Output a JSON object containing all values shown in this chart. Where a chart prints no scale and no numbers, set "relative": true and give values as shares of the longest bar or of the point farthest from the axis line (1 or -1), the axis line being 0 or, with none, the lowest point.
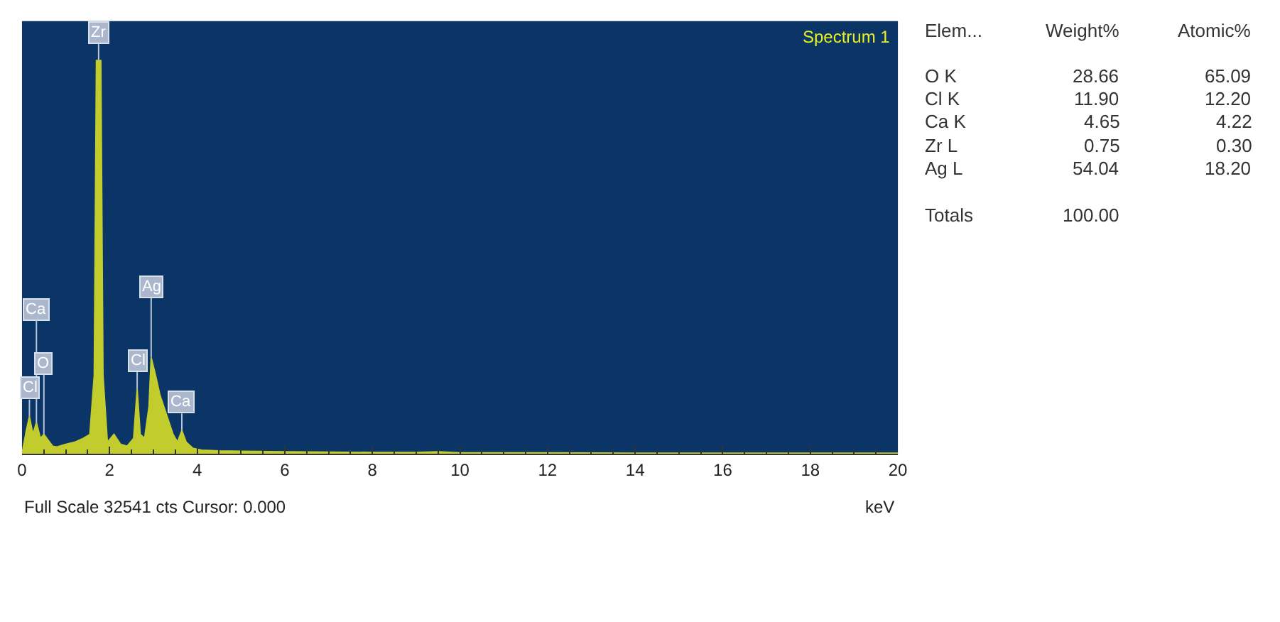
{
  "chart_data": [
    {
      "type": "area",
      "relative": true,
      "xlabel": "keV",
      "xlim": [
        0,
        20
      ],
      "xticks": [
        0,
        2,
        4,
        6,
        8,
        10,
        12,
        14,
        16,
        18,
        20
      ],
      "grid": false,
      "x": [
        0,
        0.1,
        0.17,
        0.25,
        0.33,
        0.42,
        0.5,
        0.6,
        0.7,
        0.8,
        1.0,
        1.2,
        1.4,
        1.55,
        1.65,
        1.7,
        1.75,
        1.8,
        1.85,
        1.95,
        2.1,
        2.25,
        2.4,
        2.55,
        2.63,
        2.7,
        2.8,
        2.9,
        2.95,
        3.05,
        3.15,
        3.3,
        3.45,
        3.55,
        3.65,
        3.75,
        3.9,
        4.1,
        4.5,
        5,
        6,
        7,
        8,
        9,
        9.5,
        10,
        12,
        14,
        16,
        18,
        20
      ],
      "series": [
        {
          "color": "#c2cc2c",
          "values": [
            0,
            0.06,
            0.095,
            0.05,
            0.08,
            0.04,
            0.05,
            0.035,
            0.02,
            0.018,
            0.025,
            0.03,
            0.04,
            0.05,
            0.2,
            1.0,
            1.0,
            1.0,
            0.2,
            0.03,
            0.05,
            0.025,
            0.02,
            0.04,
            0.165,
            0.05,
            0.04,
            0.12,
            0.245,
            0.2,
            0.15,
            0.1,
            0.05,
            0.03,
            0.06,
            0.03,
            0.015,
            0.01,
            0.008,
            0.007,
            0.006,
            0.005,
            0.004,
            0.004,
            0.006,
            0.003,
            0.003,
            0.002,
            0.002,
            0.002,
            0.002
          ]
        }
      ],
      "annotations": [
        {
          "text": "Zr",
          "x": 1.75,
          "y": 1.0
        },
        {
          "text": "Ca",
          "x": 0.33,
          "y": 0.08
        },
        {
          "text": "O",
          "x": 0.5,
          "y": 0.05
        },
        {
          "text": "Cl",
          "x": 0.17,
          "y": 0.095
        },
        {
          "text": "Ag",
          "x": 2.95,
          "y": 0.245
        },
        {
          "text": "Cl",
          "x": 2.63,
          "y": 0.165
        },
        {
          "text": "Ca",
          "x": 3.65,
          "y": 0.06
        },
        "Spectrum 1",
        "Full Scale 32541 cts Cursor: 0.000"
      ]
    },
    {
      "type": "other",
      "xlabel": "Elem...",
      "categories": [
        "O K",
        "Cl K",
        "Ca K",
        "Zr L",
        "Ag L",
        "Totals"
      ],
      "series": [
        {
          "name": "Weight%",
          "values": [
            28.66,
            11.9,
            4.65,
            0.75,
            54.04,
            100.0
          ],
          "value_labels": [
            "28.66",
            "11.90",
            "4.65",
            "0.75",
            "54.04",
            "100.00"
          ]
        },
        {
          "name": "Atomic%",
          "values": [
            65.09,
            12.2,
            4.22,
            0.3,
            18.2,
            null
          ],
          "value_labels": [
            "65.09",
            "12.20",
            "4.22",
            "0.30",
            "18.20",
            null
          ]
        }
      ]
    }
  ]
}
